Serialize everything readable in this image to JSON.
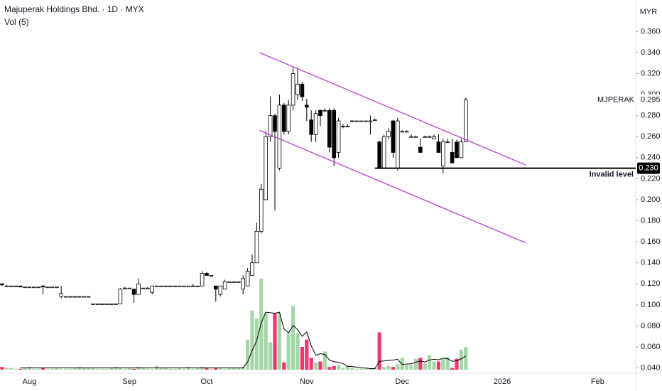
{
  "chart_data": {
    "type": "candlestick",
    "title": "Majuperak Holdings Bhd. · 1D · MYX",
    "volume_title": "Vol (5)",
    "currency": "MYR",
    "symbol": "MJPERAK",
    "last_price": 0.295,
    "last_price_label": "0.295",
    "candle_up_color": "#ffffff",
    "candle_down_color": "#000000",
    "candle_border_color": "#000000",
    "volume_up_color": "#a5d6a7",
    "volume_down_color": "#f23670",
    "volume_ma_color": "#000000",
    "channel_color": "#b83fd0",
    "ylim": [
      0.035,
      0.39
    ],
    "yticks": [
      {
        "value": 0.04,
        "label": "0.040"
      },
      {
        "value": 0.06,
        "label": "0.060"
      },
      {
        "value": 0.08,
        "label": "0.080"
      },
      {
        "value": 0.1,
        "label": "0.100"
      },
      {
        "value": 0.12,
        "label": "0.120"
      },
      {
        "value": 0.14,
        "label": "0.140"
      },
      {
        "value": 0.16,
        "label": "0.160"
      },
      {
        "value": 0.18,
        "label": "0.180"
      },
      {
        "value": 0.2,
        "label": "0.200"
      },
      {
        "value": 0.22,
        "label": "0.220"
      },
      {
        "value": 0.24,
        "label": "0.240"
      },
      {
        "value": 0.26,
        "label": "0.260"
      },
      {
        "value": 0.28,
        "label": "0.280"
      },
      {
        "value": 0.3,
        "label": "0.300"
      },
      {
        "value": 0.32,
        "label": "0.320"
      },
      {
        "value": 0.34,
        "label": "0.340"
      },
      {
        "value": 0.36,
        "label": "0.360"
      }
    ],
    "categories": [
      null,
      null,
      null,
      null,
      null,
      null,
      "Aug",
      null,
      null,
      null,
      null,
      null,
      null,
      null,
      null,
      null,
      null,
      null,
      null,
      null,
      null,
      null,
      null,
      null,
      null,
      null,
      null,
      null,
      "Sep",
      null,
      null,
      null,
      null,
      null,
      null,
      null,
      null,
      null,
      null,
      null,
      null,
      null,
      null,
      null,
      null,
      "Oct",
      null,
      null,
      null,
      null,
      null,
      null,
      null,
      null,
      null,
      null,
      null,
      null,
      null,
      null,
      null,
      null,
      null,
      null,
      null,
      null,
      null,
      "Nov",
      null,
      null,
      null,
      null,
      null,
      null,
      null,
      null,
      null,
      null,
      null,
      null,
      null,
      null,
      null,
      null,
      null,
      null,
      null,
      null,
      "Dec",
      null,
      null,
      null,
      null,
      null,
      null,
      null,
      null,
      null,
      null,
      null,
      null,
      null,
      null,
      null,
      null,
      null,
      null,
      null,
      null,
      null,
      "2026",
      null,
      null,
      null,
      null,
      null,
      null,
      null,
      null,
      null,
      null,
      null,
      null,
      null,
      null,
      null,
      null,
      null,
      null,
      null,
      null,
      "Feb",
      null,
      null,
      null,
      null,
      null,
      null,
      null,
      null
    ],
    "open": [
      0.12,
      0.118,
      0.118,
      0.118,
      0.118,
      0.117,
      0.117,
      0.117,
      0.117,
      0.118,
      0.117,
      0.117,
      0.117,
      0.108,
      0.108,
      0.108,
      0.108,
      0.108,
      0.108,
      0.108,
      0.101,
      0.101,
      0.101,
      0.101,
      0.101,
      0.101,
      0.101,
      0.116,
      0.116,
      0.115,
      0.11,
      0.116,
      0.116,
      0.112,
      0.118,
      0.118,
      0.118,
      0.118,
      0.118,
      0.118,
      0.118,
      0.118,
      0.118,
      0.118,
      0.118,
      0.13,
      0.128,
      0.118,
      0.11,
      0.115,
      0.122,
      0.122,
      0.122,
      0.115,
      0.118,
      0.128,
      0.14,
      0.17,
      0.2,
      0.26,
      0.28,
      0.23,
      0.29,
      0.265,
      0.29,
      0.3,
      0.31,
      0.29,
      0.276,
      0.262,
      0.285,
      0.285,
      0.285,
      0.285,
      0.245,
      0.27,
      0.27,
      0.275,
      0.275,
      0.275,
      0.275,
      0.275,
      0.276,
      0.255,
      0.23,
      0.26,
      0.275,
      0.23,
      0.265,
      0.265,
      0.26,
      0.26,
      0.25,
      0.26,
      0.26,
      0.258,
      0.255,
      0.232,
      0.255,
      0.245,
      0.255,
      0.24,
      0.255,
      null,
      null,
      null,
      null,
      null,
      null,
      null,
      null,
      null,
      null,
      null,
      null,
      null,
      null,
      null,
      null,
      null,
      null,
      null,
      null,
      null,
      null,
      null,
      null,
      null,
      null,
      null,
      null,
      null,
      null,
      null,
      null,
      null,
      null,
      null,
      null,
      null
    ],
    "high": [
      0.121,
      0.119,
      0.118,
      0.118,
      0.118,
      0.117,
      0.117,
      0.117,
      0.117,
      0.119,
      0.117,
      0.117,
      0.117,
      0.118,
      0.108,
      0.108,
      0.108,
      0.108,
      0.108,
      0.108,
      0.101,
      0.101,
      0.101,
      0.101,
      0.101,
      0.101,
      0.116,
      0.117,
      0.116,
      0.115,
      0.125,
      0.116,
      0.117,
      0.118,
      0.118,
      0.118,
      0.118,
      0.118,
      0.118,
      0.118,
      0.118,
      0.118,
      0.12,
      0.118,
      0.132,
      0.131,
      0.128,
      0.118,
      0.118,
      0.124,
      0.122,
      0.122,
      0.122,
      0.128,
      0.135,
      0.148,
      0.178,
      0.215,
      0.265,
      0.298,
      0.282,
      0.3,
      0.292,
      0.295,
      0.326,
      0.325,
      0.312,
      0.296,
      0.285,
      0.285,
      0.286,
      0.287,
      0.287,
      0.287,
      0.278,
      0.272,
      0.272,
      0.276,
      0.275,
      0.275,
      0.275,
      0.28,
      0.277,
      0.256,
      0.262,
      0.268,
      0.276,
      0.278,
      0.266,
      0.266,
      0.262,
      0.261,
      0.258,
      0.261,
      0.261,
      0.262,
      0.262,
      0.258,
      0.258,
      0.258,
      0.257,
      0.258,
      0.297,
      null,
      null,
      null,
      null,
      null,
      null,
      null,
      null,
      null,
      null,
      null,
      null,
      null,
      null,
      null,
      null,
      null,
      null,
      null,
      null,
      null,
      null,
      null,
      null,
      null,
      null,
      null,
      null,
      null,
      null,
      null,
      null,
      null,
      null,
      null,
      null,
      null
    ],
    "low": [
      0.118,
      0.118,
      0.118,
      0.118,
      0.117,
      0.117,
      0.117,
      0.117,
      0.117,
      0.11,
      0.117,
      0.117,
      0.117,
      0.106,
      0.108,
      0.108,
      0.108,
      0.108,
      0.108,
      0.108,
      0.101,
      0.101,
      0.101,
      0.101,
      0.101,
      0.101,
      0.101,
      0.116,
      0.116,
      0.102,
      0.11,
      0.116,
      0.116,
      0.11,
      0.118,
      0.118,
      0.118,
      0.118,
      0.118,
      0.118,
      0.118,
      0.118,
      0.118,
      0.118,
      0.118,
      0.128,
      0.128,
      0.103,
      0.108,
      0.115,
      0.122,
      0.122,
      0.122,
      0.11,
      0.118,
      0.128,
      0.14,
      0.168,
      0.2,
      0.255,
      0.19,
      0.228,
      0.262,
      0.262,
      0.285,
      0.295,
      0.294,
      0.275,
      0.255,
      0.255,
      0.27,
      0.284,
      0.245,
      0.232,
      0.24,
      0.268,
      0.27,
      0.275,
      0.275,
      0.275,
      0.275,
      0.262,
      0.276,
      0.23,
      0.23,
      0.258,
      0.24,
      0.228,
      0.265,
      0.265,
      0.26,
      0.26,
      0.245,
      0.26,
      0.26,
      0.258,
      0.245,
      0.225,
      0.255,
      0.235,
      0.24,
      0.24,
      0.255,
      null,
      null,
      null,
      null,
      null,
      null,
      null,
      null,
      null,
      null,
      null,
      null,
      null,
      null,
      null,
      null,
      null,
      null,
      null,
      null,
      null,
      null,
      null,
      null,
      null,
      null,
      null,
      null,
      null,
      null,
      null,
      null,
      null,
      null,
      null,
      null,
      null
    ],
    "close": [
      0.119,
      0.118,
      0.118,
      0.118,
      0.117,
      0.117,
      0.117,
      0.117,
      0.117,
      0.117,
      0.117,
      0.117,
      0.117,
      0.111,
      0.108,
      0.108,
      0.108,
      0.108,
      0.108,
      0.108,
      0.101,
      0.101,
      0.101,
      0.101,
      0.101,
      0.101,
      0.115,
      0.116,
      0.116,
      0.11,
      0.12,
      0.116,
      0.116,
      0.118,
      0.118,
      0.118,
      0.118,
      0.118,
      0.118,
      0.118,
      0.118,
      0.118,
      0.118,
      0.118,
      0.13,
      0.128,
      0.128,
      0.115,
      0.118,
      0.122,
      0.122,
      0.122,
      0.122,
      0.125,
      0.132,
      0.14,
      0.17,
      0.21,
      0.26,
      0.28,
      0.265,
      0.29,
      0.265,
      0.29,
      0.32,
      0.31,
      0.298,
      0.288,
      0.262,
      0.282,
      0.28,
      0.285,
      0.25,
      0.24,
      0.275,
      0.27,
      0.27,
      0.275,
      0.275,
      0.275,
      0.275,
      0.275,
      0.276,
      0.23,
      0.26,
      0.265,
      0.245,
      0.275,
      0.265,
      0.265,
      0.26,
      0.26,
      0.245,
      0.26,
      0.26,
      0.26,
      0.245,
      0.255,
      0.255,
      0.235,
      0.24,
      0.255,
      0.295,
      null,
      null,
      null,
      null,
      null,
      null,
      null,
      null,
      null,
      null,
      null,
      null,
      null,
      null,
      null,
      null,
      null,
      null,
      null,
      null,
      null,
      null,
      null,
      null,
      null,
      null,
      null,
      null,
      null,
      null,
      null,
      null,
      null,
      null,
      null,
      null,
      null
    ],
    "volume": [
      3,
      2,
      2,
      1,
      1,
      2,
      3,
      1,
      1,
      2,
      1,
      1,
      2,
      1,
      1,
      1,
      2,
      3,
      2,
      2,
      2,
      1,
      1,
      1,
      2,
      3,
      2,
      1,
      2,
      1,
      3,
      2,
      1,
      1,
      4,
      2,
      2,
      1,
      1,
      2,
      1,
      3,
      1,
      2,
      3,
      2,
      1,
      2,
      2,
      1,
      2,
      2,
      2,
      3,
      33,
      65,
      56,
      100,
      62,
      30,
      62,
      62,
      8,
      40,
      70,
      40,
      25,
      33,
      13,
      8,
      9,
      20,
      3,
      4,
      5,
      2,
      4,
      2,
      1,
      1,
      1,
      1,
      2,
      41,
      3,
      4,
      3,
      6,
      13,
      5,
      5,
      12,
      13,
      7,
      16,
      9,
      9,
      12,
      14,
      2,
      12,
      22,
      25,
      null,
      null,
      null,
      null,
      null,
      null,
      null,
      null,
      null,
      null,
      null,
      null,
      null,
      null,
      null,
      null,
      null,
      null,
      null,
      null,
      null,
      null,
      null,
      null,
      null,
      null,
      null,
      null,
      null,
      null,
      null,
      null,
      null,
      null,
      null,
      null,
      null
    ],
    "volume_ma": [
      null,
      null,
      null,
      null,
      2,
      2,
      2,
      2,
      2,
      2,
      2,
      2,
      2,
      2,
      2,
      2,
      2,
      2,
      2,
      2,
      2,
      2,
      2,
      2,
      2,
      2,
      2,
      2,
      2,
      2,
      2,
      2,
      2,
      2,
      2,
      2,
      2,
      2,
      2,
      2,
      2,
      2,
      2,
      2,
      2,
      2,
      2,
      2,
      2,
      2,
      2,
      2,
      2,
      2,
      8.4,
      21,
      31.8,
      51.4,
      63.2,
      62.6,
      62,
      63.2,
      44.8,
      40.4,
      48.4,
      44,
      36.6,
      41.6,
      26.2,
      15.8,
      17.6,
      16.6,
      10.6,
      8.8,
      8.2,
      6.6,
      3.6,
      3.4,
      2.8,
      2,
      1.8,
      1.2,
      1.2,
      9.2,
      9.6,
      10.2,
      10.6,
      11.4,
      5.8,
      6.2,
      6.4,
      8.2,
      9.6,
      8.4,
      10.6,
      11.4,
      10.8,
      12.6,
      12,
      9.2,
      9.8,
      12,
      15,
      null,
      null,
      null,
      null,
      null,
      null,
      null,
      null,
      null,
      null,
      null,
      null,
      null,
      null,
      null,
      null,
      null,
      null,
      null,
      null,
      null,
      null,
      null,
      null,
      null,
      null,
      null,
      null,
      null,
      null,
      null,
      null,
      null,
      null,
      null,
      null,
      null
    ],
    "channel": [
      {
        "x": [
          56.6,
          115.2
        ],
        "y": [
          0.34,
          0.233
        ]
      },
      {
        "x": [
          56.6,
          115.2
        ],
        "y": [
          0.266,
          0.159
        ]
      }
    ],
    "level": {
      "name": "Invalid level",
      "value": 0.23,
      "label": "0.230",
      "start": 82
    }
  }
}
